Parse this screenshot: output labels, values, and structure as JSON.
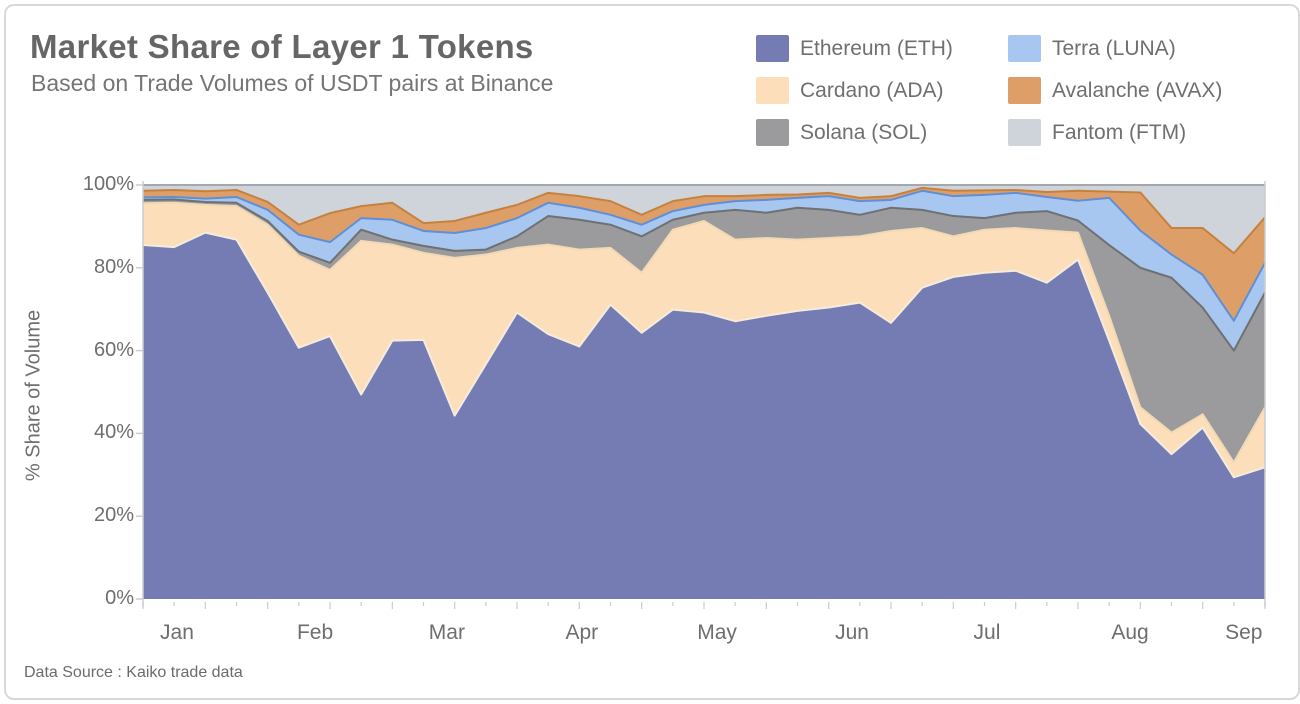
{
  "header": {
    "title": "Market Share of Layer 1 Tokens",
    "subtitle": "Based on Trade Volumes of USDT pairs at Binance"
  },
  "footer": {
    "source_note": "Data Source : Kaiko trade data"
  },
  "y_axis": {
    "title": "% Share of Volume",
    "tick_labels": [
      "0%",
      "20%",
      "40%",
      "60%",
      "80%",
      "100%"
    ],
    "tick_values": [
      0,
      20,
      40,
      60,
      80,
      100
    ]
  },
  "x_axis": {
    "month_labels": [
      {
        "label": "Jan",
        "week": 1.09
      },
      {
        "label": "Feb",
        "week": 5.52
      },
      {
        "label": "Mar",
        "week": 9.75
      },
      {
        "label": "Apr",
        "week": 14.08
      },
      {
        "label": "May",
        "week": 18.42
      },
      {
        "label": "Jun",
        "week": 22.75
      },
      {
        "label": "Jul",
        "week": 27.08
      },
      {
        "label": "Aug",
        "week": 31.67
      },
      {
        "label": "Sep",
        "week": 35.32
      }
    ]
  },
  "chart_data": {
    "type": "area",
    "stacked": true,
    "title": "Market Share of Layer 1 Tokens",
    "subtitle": "Based on Trade Volumes of USDT pairs at Binance",
    "xlabel": "",
    "ylabel": "% Share of Volume",
    "ylim": [
      0,
      100
    ],
    "unit": "% share of volume",
    "x_unit": "weekly observations, Jan through mid-Sep",
    "grid": "horizontal, at 20/40/60/80%",
    "legend_position": "top-right, two columns",
    "x": [
      0,
      1,
      2,
      3,
      4,
      5,
      6,
      7,
      8,
      9,
      10,
      11,
      12,
      13,
      14,
      15,
      16,
      17,
      18,
      19,
      20,
      21,
      22,
      23,
      24,
      25,
      26,
      27,
      28,
      29,
      30,
      31,
      32,
      33,
      34,
      35,
      36
    ],
    "series": [
      {
        "name": "Ethereum (ETH)",
        "color": "#757cb3",
        "edge_color": "#f4ecdd",
        "values": [
          85.5,
          85.0,
          88.5,
          86.8,
          74.0,
          60.7,
          63.5,
          49.4,
          62.4,
          62.6,
          44.3,
          56.7,
          69.2,
          64.0,
          61.0,
          71.1,
          64.3,
          69.9,
          69.2,
          67.1,
          68.4,
          69.6,
          70.4,
          71.6,
          66.7,
          75.2,
          77.8,
          78.8,
          79.3,
          76.4,
          82.0,
          62.4,
          42.3,
          35.0,
          41.4,
          29.4,
          31.8
        ]
      },
      {
        "name": "Cardano (ADA)",
        "color": "#fcdebb",
        "edge_color": "#f0d9b4",
        "values": [
          10.1,
          10.7,
          6.7,
          8.1,
          16.4,
          22.2,
          16.0,
          37.1,
          23.2,
          21.0,
          38.1,
          26.5,
          15.6,
          21.6,
          23.4,
          13.7,
          14.5,
          19.3,
          22.1,
          19.7,
          18.8,
          17.2,
          16.8,
          16.0,
          22.2,
          14.4,
          9.8,
          10.4,
          10.3,
          12.6,
          6.5,
          6.0,
          4.0,
          5.2,
          3.2,
          3.6,
          14.5
        ]
      },
      {
        "name": "Solana (SOL)",
        "color": "#9b9b9d",
        "edge_color": "#6f7072",
        "values": [
          0.8,
          0.8,
          0.7,
          0.8,
          0.9,
          1.0,
          1.7,
          2.7,
          1.2,
          1.7,
          1.7,
          1.2,
          2.8,
          6.9,
          7.2,
          5.6,
          8.8,
          2.4,
          2.0,
          7.2,
          6.1,
          7.7,
          6.8,
          5.2,
          5.6,
          4.4,
          4.9,
          2.8,
          3.7,
          4.7,
          2.9,
          17.1,
          33.7,
          37.4,
          25.8,
          27.0,
          27.7
        ]
      },
      {
        "name": "Terra (LUNA)",
        "color": "#a7c7f0",
        "edge_color": "#5e8fd8",
        "values": [
          0.6,
          0.6,
          0.8,
          1.4,
          2.7,
          4.1,
          5.0,
          2.8,
          4.8,
          3.6,
          4.3,
          5.2,
          4.4,
          3.2,
          2.9,
          2.4,
          2.8,
          2.1,
          1.9,
          2.1,
          3.1,
          2.4,
          3.3,
          3.3,
          1.9,
          4.6,
          4.8,
          5.6,
          4.8,
          3.4,
          4.8,
          11.4,
          9.0,
          5.6,
          7.9,
          7.2,
          7.2
        ]
      },
      {
        "name": "Avalanche (AVAX)",
        "color": "#de9e67",
        "edge_color": "#c6813e",
        "values": [
          1.6,
          1.7,
          1.8,
          1.7,
          1.9,
          2.4,
          7.0,
          2.9,
          4.1,
          1.9,
          2.9,
          3.7,
          3.2,
          2.4,
          2.8,
          3.3,
          2.4,
          2.4,
          2.1,
          1.2,
          1.2,
          0.8,
          0.8,
          0.8,
          0.9,
          0.7,
          1.3,
          1.1,
          0.7,
          1.2,
          2.4,
          1.5,
          9.2,
          6.4,
          11.3,
          16.3,
          11.0
        ]
      },
      {
        "name": "Fantom (FTM)",
        "color": "#cfd4da",
        "edge_color": "#c6813e",
        "values": [
          1.4,
          1.2,
          1.5,
          1.2,
          4.1,
          9.6,
          6.8,
          5.1,
          4.3,
          9.2,
          8.7,
          6.7,
          4.8,
          1.9,
          2.7,
          3.9,
          7.2,
          3.9,
          2.7,
          2.7,
          2.4,
          2.3,
          1.9,
          3.1,
          2.7,
          0.7,
          1.4,
          1.3,
          1.2,
          1.7,
          1.4,
          1.6,
          1.8,
          10.4,
          10.4,
          16.5,
          7.8
        ]
      }
    ],
    "top_edge_color": "#a2a8ae",
    "gridline_color": "#ececec",
    "plot_border_color": "#c9cdd2",
    "tick_color": "#c9cccf"
  }
}
